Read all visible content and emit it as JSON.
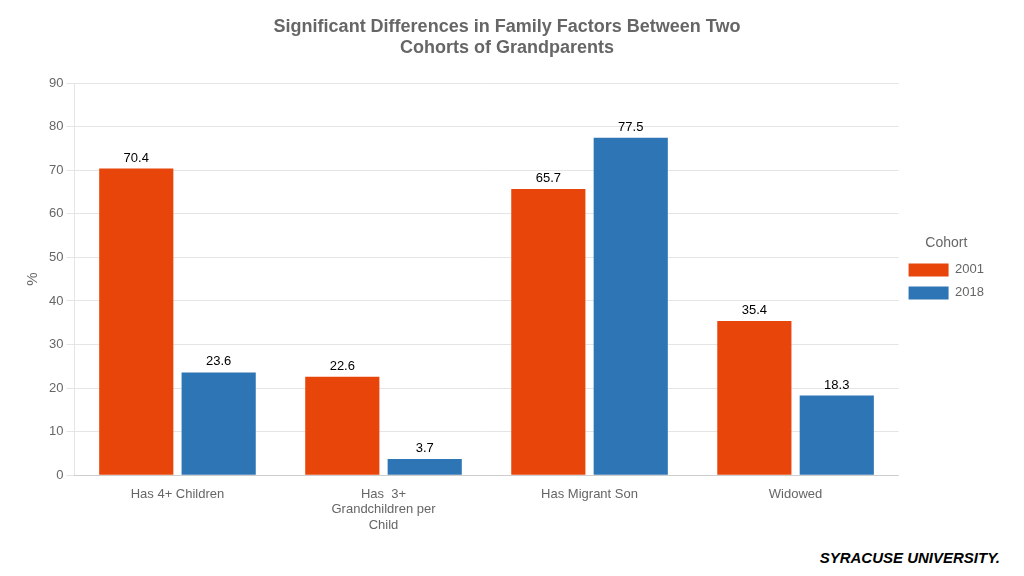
{
  "chart_data": {
    "type": "bar",
    "title": "Significant Differences in Family Factors Between Two\nCohorts of Grandparents",
    "categories": [
      "Has 4+ Children",
      "Has  3+\nGrandchildren per\nChild",
      "Has Migrant Son",
      "Widowed"
    ],
    "series": [
      {
        "name": "2001",
        "color": "#E8450A",
        "values": [
          70.4,
          22.6,
          65.7,
          35.4
        ]
      },
      {
        "name": "2018",
        "color": "#2E75B6",
        "values": [
          23.6,
          3.7,
          77.5,
          18.3
        ]
      }
    ],
    "ylabel": "%",
    "ylim": [
      0,
      90
    ],
    "yticks": [
      0,
      10,
      20,
      30,
      40,
      50,
      60,
      70,
      80,
      90
    ],
    "grid": true,
    "legend": "right",
    "legend_title": "Cohort",
    "data_labels": true,
    "annotations": [
      "SYRACUSE UNIVERSITY."
    ]
  }
}
